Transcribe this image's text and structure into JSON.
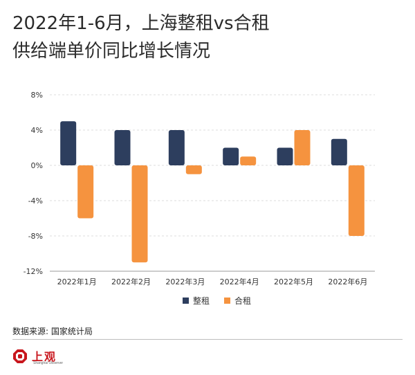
{
  "header": {
    "title_line1": "2022年1-6月，上海整租vs合租",
    "title_line2": "供给端单价同比增长情况"
  },
  "colors": {
    "整租": "#2d3e5e",
    "合租": "#f5933f",
    "grid": "#dddddd",
    "axis": "#999999"
  },
  "chart_data": {
    "type": "bar",
    "title": "2022年1-6月，上海整租vs合租供给端单价同比增长情况",
    "categories": [
      "2022年1月",
      "2022年2月",
      "2022年3月",
      "2022年4月",
      "2022年5月",
      "2022年6月"
    ],
    "series": [
      {
        "name": "整租",
        "values": [
          5,
          4,
          4,
          2,
          2,
          3
        ]
      },
      {
        "name": "合租",
        "values": [
          -6,
          -11,
          -1,
          1,
          4,
          -8
        ]
      }
    ],
    "yticks": [
      "8%",
      "4%",
      "0%",
      "-4%",
      "-8%",
      "-12%"
    ],
    "ytick_values": [
      8,
      4,
      0,
      -4,
      -8,
      -12
    ],
    "ylim": [
      -12,
      8
    ],
    "grid": true,
    "legend_position": "bottom-center"
  },
  "footer": {
    "source": "数据来源: 国家统计局",
    "brand_name": "上观",
    "brand_sub": "Shanghai Observer"
  }
}
